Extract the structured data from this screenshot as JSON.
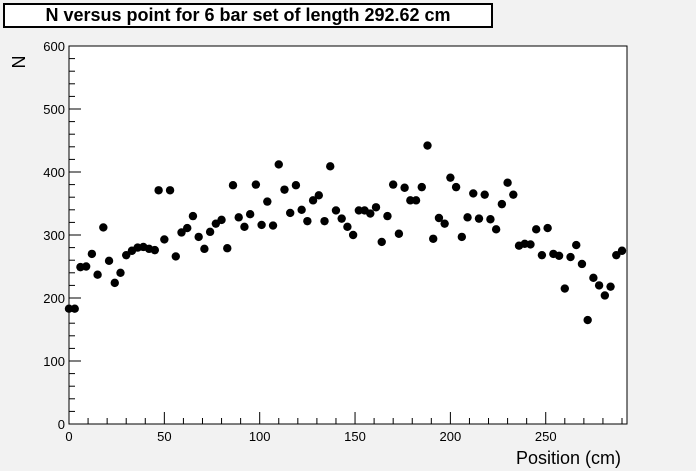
{
  "chart_data": {
    "type": "scatter",
    "title": "N versus point for 6 bar set of length 292.62 cm",
    "xlabel": "Position (cm)",
    "ylabel": "N",
    "xlim": [
      0,
      292.62
    ],
    "ylim": [
      0,
      600
    ],
    "x_ticks": [
      0,
      50,
      100,
      150,
      200,
      250
    ],
    "y_ticks": [
      0,
      100,
      200,
      300,
      400,
      500,
      600
    ],
    "grid": false,
    "legend": "none",
    "marker_color": "#000000",
    "points": [
      [
        0,
        183
      ],
      [
        3,
        183
      ],
      [
        6,
        249
      ],
      [
        9,
        250
      ],
      [
        12,
        270
      ],
      [
        15,
        237
      ],
      [
        18,
        312
      ],
      [
        21,
        259
      ],
      [
        24,
        224
      ],
      [
        27,
        240
      ],
      [
        30,
        268
      ],
      [
        33,
        275
      ],
      [
        36,
        280
      ],
      [
        39,
        281
      ],
      [
        42,
        278
      ],
      [
        45,
        276
      ],
      [
        47,
        371
      ],
      [
        50,
        293
      ],
      [
        53,
        371
      ],
      [
        56,
        266
      ],
      [
        59,
        304
      ],
      [
        62,
        311
      ],
      [
        65,
        330
      ],
      [
        68,
        297
      ],
      [
        71,
        278
      ],
      [
        74,
        305
      ],
      [
        77,
        318
      ],
      [
        80,
        324
      ],
      [
        83,
        279
      ],
      [
        86,
        379
      ],
      [
        89,
        328
      ],
      [
        92,
        313
      ],
      [
        95,
        333
      ],
      [
        98,
        380
      ],
      [
        101,
        316
      ],
      [
        104,
        353
      ],
      [
        107,
        315
      ],
      [
        110,
        412
      ],
      [
        113,
        372
      ],
      [
        116,
        335
      ],
      [
        119,
        379
      ],
      [
        122,
        340
      ],
      [
        125,
        322
      ],
      [
        128,
        355
      ],
      [
        131,
        363
      ],
      [
        134,
        322
      ],
      [
        137,
        409
      ],
      [
        140,
        339
      ],
      [
        143,
        326
      ],
      [
        146,
        313
      ],
      [
        149,
        300
      ],
      [
        152,
        339
      ],
      [
        155,
        339
      ],
      [
        158,
        334
      ],
      [
        161,
        344
      ],
      [
        164,
        289
      ],
      [
        167,
        330
      ],
      [
        170,
        380
      ],
      [
        173,
        302
      ],
      [
        176,
        375
      ],
      [
        179,
        355
      ],
      [
        182,
        355
      ],
      [
        185,
        376
      ],
      [
        188,
        442
      ],
      [
        191,
        294
      ],
      [
        194,
        327
      ],
      [
        197,
        318
      ],
      [
        200,
        391
      ],
      [
        203,
        376
      ],
      [
        206,
        297
      ],
      [
        209,
        328
      ],
      [
        212,
        366
      ],
      [
        215,
        326
      ],
      [
        218,
        364
      ],
      [
        221,
        325
      ],
      [
        224,
        309
      ],
      [
        227,
        349
      ],
      [
        230,
        383
      ],
      [
        233,
        364
      ],
      [
        236,
        283
      ],
      [
        239,
        286
      ],
      [
        242,
        285
      ],
      [
        245,
        309
      ],
      [
        248,
        268
      ],
      [
        251,
        311
      ],
      [
        254,
        270
      ],
      [
        257,
        267
      ],
      [
        260,
        215
      ],
      [
        263,
        265
      ],
      [
        266,
        284
      ],
      [
        269,
        254
      ],
      [
        272,
        165
      ],
      [
        275,
        232
      ],
      [
        278,
        220
      ],
      [
        281,
        204
      ],
      [
        284,
        218
      ],
      [
        287,
        268
      ],
      [
        290,
        275
      ]
    ]
  }
}
